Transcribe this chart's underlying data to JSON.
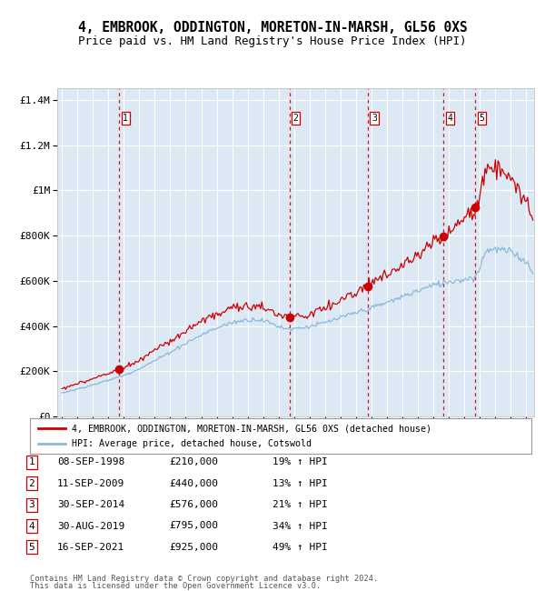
{
  "title": "4, EMBROOK, ODDINGTON, MORETON-IN-MARSH, GL56 0XS",
  "subtitle": "Price paid vs. HM Land Registry's House Price Index (HPI)",
  "ylim": [
    0,
    1450000
  ],
  "xlim_start": 1994.7,
  "xlim_end": 2025.5,
  "plot_bg_color": "#dce9f5",
  "grid_color": "#ffffff",
  "hpi_line_color": "#8cb8d8",
  "price_line_color": "#cc0000",
  "sale_marker_color": "#cc0000",
  "sale_marker_size": 7,
  "dashed_line_color": "#cc0000",
  "legend_box_color": "#cc0000",
  "legend1": "4, EMBROOK, ODDINGTON, MORETON-IN-MARSH, GL56 0XS (detached house)",
  "legend2": "HPI: Average price, detached house, Cotswold",
  "sales": [
    {
      "num": 1,
      "date_year": 1998.69,
      "price": 210000,
      "label": "08-SEP-1998",
      "pct": "19%"
    },
    {
      "num": 2,
      "date_year": 2009.69,
      "price": 440000,
      "label": "11-SEP-2009",
      "pct": "13%"
    },
    {
      "num": 3,
      "date_year": 2014.75,
      "price": 576000,
      "label": "30-SEP-2014",
      "pct": "21%"
    },
    {
      "num": 4,
      "date_year": 2019.66,
      "price": 795000,
      "label": "30-AUG-2019",
      "pct": "34%"
    },
    {
      "num": 5,
      "date_year": 2021.71,
      "price": 925000,
      "label": "16-SEP-2021",
      "pct": "49%"
    }
  ],
  "yticks": [
    0,
    200000,
    400000,
    600000,
    800000,
    1000000,
    1200000,
    1400000
  ],
  "ytick_labels": [
    "£0",
    "£200K",
    "£400K",
    "£600K",
    "£800K",
    "£1M",
    "£1.2M",
    "£1.4M"
  ],
  "footer1": "Contains HM Land Registry data © Crown copyright and database right 2024.",
  "footer2": "This data is licensed under the Open Government Licence v3.0."
}
